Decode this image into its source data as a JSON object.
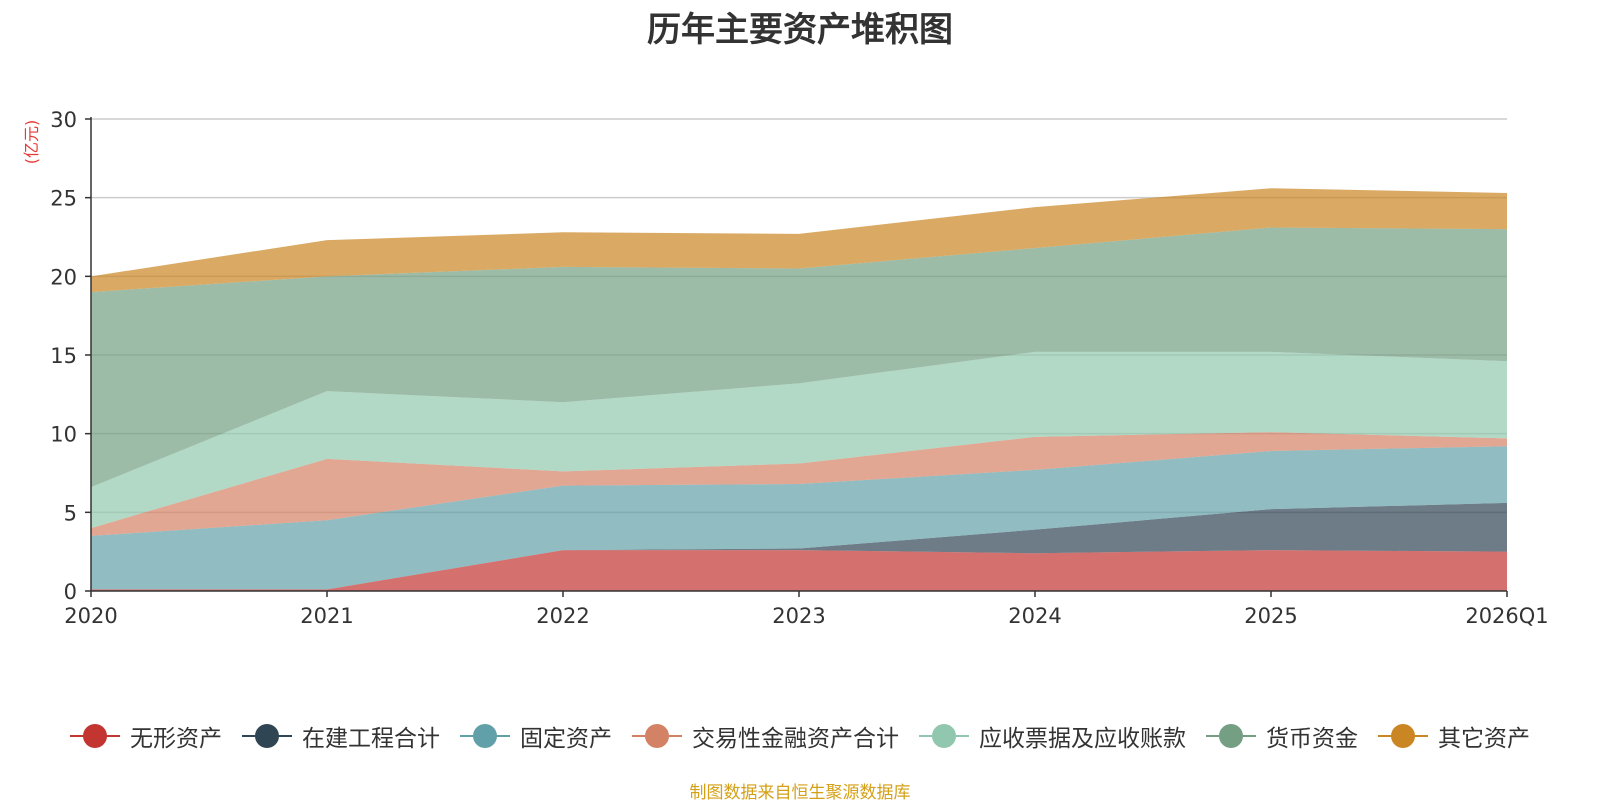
{
  "chart_data": {
    "type": "area",
    "stacked": true,
    "title": "历年主要资产堆积图",
    "ylabel": "(亿元)",
    "ylim": [
      0,
      30
    ],
    "yticks": [
      0,
      5,
      10,
      15,
      20,
      25,
      30
    ],
    "categories": [
      "2020",
      "2021",
      "2022",
      "2023",
      "2024",
      "2025",
      "2026Q1"
    ],
    "series": [
      {
        "name": "无形资产",
        "color": "#c23531",
        "values": [
          0.1,
          0.1,
          2.6,
          2.6,
          2.4,
          2.6,
          2.5
        ]
      },
      {
        "name": "在建工程合计",
        "color": "#2f4554",
        "values": [
          0.0,
          0.0,
          0.0,
          0.1,
          1.5,
          2.6,
          3.1
        ]
      },
      {
        "name": "固定资产",
        "color": "#61a0a8",
        "values": [
          3.4,
          4.4,
          4.1,
          4.1,
          3.8,
          3.7,
          3.6
        ]
      },
      {
        "name": "交易性金融资产合计",
        "color": "#d48265",
        "values": [
          0.5,
          3.9,
          0.9,
          1.3,
          2.1,
          1.2,
          0.5
        ]
      },
      {
        "name": "应收票据及应收账款",
        "color": "#91c7ae",
        "values": [
          2.6,
          4.3,
          4.4,
          5.1,
          5.4,
          5.1,
          4.9
        ]
      },
      {
        "name": "货币资金",
        "color": "#749f83",
        "values": [
          12.4,
          7.3,
          8.6,
          7.3,
          6.6,
          7.9,
          8.4
        ]
      },
      {
        "name": "其它资产",
        "color": "#ca8622",
        "values": [
          1.0,
          2.3,
          2.2,
          2.2,
          2.6,
          2.5,
          2.3
        ]
      }
    ],
    "legend_position": "bottom",
    "grid": true
  },
  "source_note": "制图数据来自恒生聚源数据库",
  "colors": {
    "title": "#333333",
    "unit": "#e53935",
    "source": "#d4a017",
    "grid": "#cccccc",
    "axis": "#333333"
  }
}
